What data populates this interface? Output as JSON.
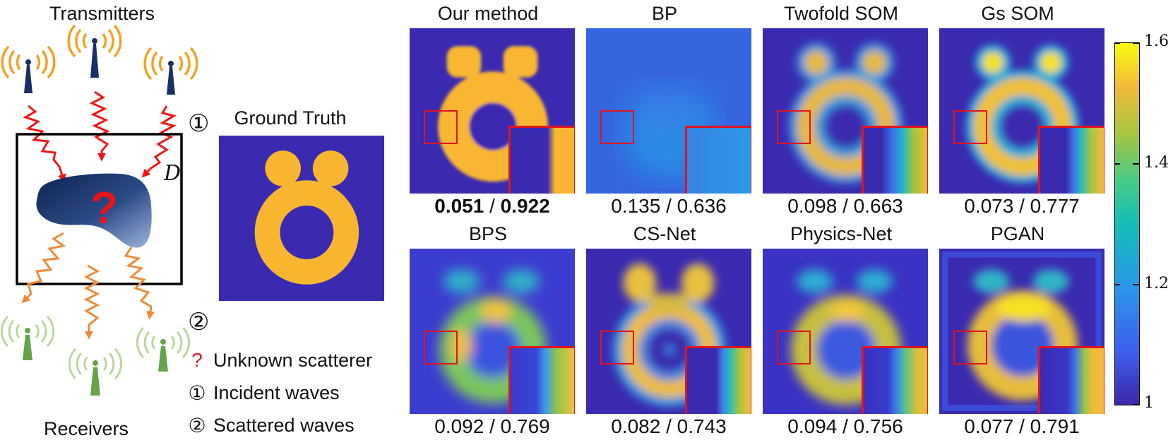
{
  "scenario": {
    "transmitters_label": "Transmitters",
    "receivers_label": "Receivers",
    "domain_symbol": "D",
    "unknown_symbol": "?",
    "marker_1": "①",
    "marker_2": "②"
  },
  "legend": {
    "items": [
      {
        "symbol": "?",
        "text": "Unknown scatterer"
      },
      {
        "symbol": "①",
        "text": "Incident waves"
      },
      {
        "symbol": "②",
        "text": "Scattered waves"
      }
    ]
  },
  "ground_truth": {
    "title": "Ground Truth"
  },
  "methods": [
    {
      "title": "Our method",
      "metric_a": "0.051",
      "sep": " / ",
      "metric_b": "0.922",
      "bold": true
    },
    {
      "title": "BP",
      "metric_a": "0.135",
      "sep": " / ",
      "metric_b": "0.636",
      "bold": false
    },
    {
      "title": "Twofold SOM",
      "metric_a": "0.098",
      "sep": " / ",
      "metric_b": "0.663",
      "bold": false
    },
    {
      "title": "Gs SOM",
      "metric_a": "0.073",
      "sep": " / ",
      "metric_b": "0.777",
      "bold": false
    },
    {
      "title": "BPS",
      "metric_a": "0.092",
      "sep": " / ",
      "metric_b": "0.769",
      "bold": false
    },
    {
      "title": "CS-Net",
      "metric_a": "0.082",
      "sep": " / ",
      "metric_b": "0.743",
      "bold": false
    },
    {
      "title": "Physics-Net",
      "metric_a": "0.094",
      "sep": " / ",
      "metric_b": "0.756",
      "bold": false
    },
    {
      "title": "PGAN",
      "metric_a": "0.077",
      "sep": " / ",
      "metric_b": "0.791",
      "bold": false
    }
  ],
  "colorbar": {
    "ticks": [
      "1.6",
      "1.4",
      "1.2",
      "1"
    ],
    "range": [
      1.0,
      1.6
    ]
  },
  "colors": {
    "background_blue": "#3a2ab0",
    "scatterer_yellow": "#f8b630",
    "inset_red": "#e0141c",
    "wave_red": "#f01616",
    "wave_orange": "#ef8a3a",
    "antenna_navy": "#1a2f66",
    "antenna_green": "#5fa040"
  }
}
